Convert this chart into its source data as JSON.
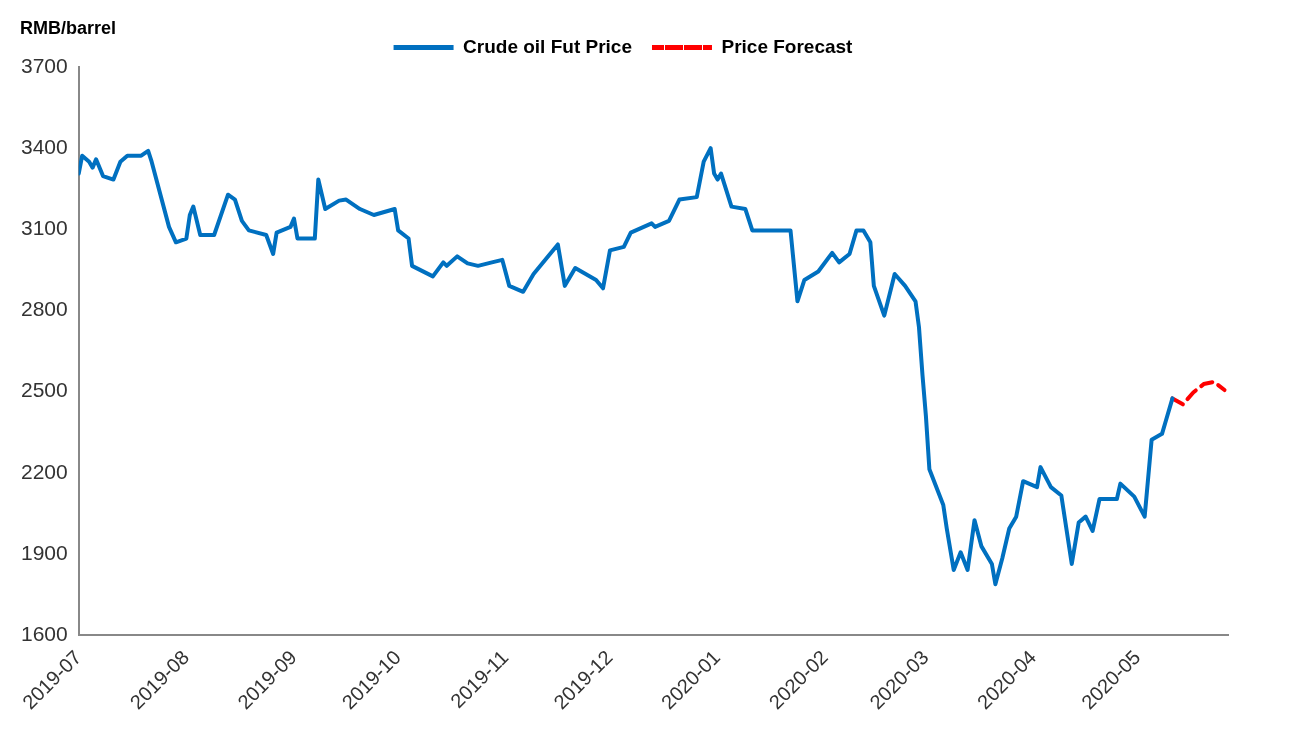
{
  "chart_data": {
    "type": "line",
    "ylabel": "RMB/barrel",
    "legend": "top",
    "grid": false,
    "marker": "none",
    "xlim": [
      "2019-07-01",
      "2020-05-27"
    ],
    "xticks": [
      {
        "value": "2019-07-01",
        "label": "2019-07"
      },
      {
        "value": "2019-08-01",
        "label": "2019-08"
      },
      {
        "value": "2019-09-01",
        "label": "2019-09"
      },
      {
        "value": "2019-10-01",
        "label": "2019-10"
      },
      {
        "value": "2019-11-01",
        "label": "2019-11"
      },
      {
        "value": "2019-12-01",
        "label": "2019-12"
      },
      {
        "value": "2020-01-01",
        "label": "2020-01"
      },
      {
        "value": "2020-02-01",
        "label": "2020-02"
      },
      {
        "value": "2020-03-01",
        "label": "2020-03"
      },
      {
        "value": "2020-04-01",
        "label": "2020-04"
      },
      {
        "value": "2020-05-01",
        "label": "2020-05"
      }
    ],
    "ylim": [
      1600,
      3700
    ],
    "yticks": [
      1600,
      1900,
      2200,
      2500,
      2800,
      3100,
      3400,
      3700
    ],
    "series": [
      {
        "name": "Crude oil Fut Price",
        "color": "#0070c0",
        "line_style": "solid",
        "x": [
          "2019-07-01",
          "2019-07-02",
          "2019-07-04",
          "2019-07-05",
          "2019-07-06",
          "2019-07-08",
          "2019-07-11",
          "2019-07-13",
          "2019-07-15",
          "2019-07-19",
          "2019-07-21",
          "2019-07-22",
          "2019-07-27",
          "2019-07-29",
          "2019-08-01",
          "2019-08-02",
          "2019-08-03",
          "2019-08-05",
          "2019-08-09",
          "2019-08-13",
          "2019-08-15",
          "2019-08-17",
          "2019-08-19",
          "2019-08-24",
          "2019-08-26",
          "2019-08-27",
          "2019-08-31",
          "2019-09-01",
          "2019-09-02",
          "2019-09-07",
          "2019-09-08",
          "2019-09-10",
          "2019-09-14",
          "2019-09-16",
          "2019-09-20",
          "2019-09-24",
          "2019-09-30",
          "2019-10-01",
          "2019-10-04",
          "2019-10-05",
          "2019-10-11",
          "2019-10-14",
          "2019-10-15",
          "2019-10-18",
          "2019-10-21",
          "2019-10-24",
          "2019-10-28",
          "2019-10-31",
          "2019-11-02",
          "2019-11-06",
          "2019-11-09",
          "2019-11-16",
          "2019-11-18",
          "2019-11-21",
          "2019-11-27",
          "2019-11-29",
          "2019-12-01",
          "2019-12-05",
          "2019-12-07",
          "2019-12-13",
          "2019-12-14",
          "2019-12-18",
          "2019-12-21",
          "2019-12-26",
          "2019-12-28",
          "2019-12-30",
          "2019-12-31",
          "2020-01-01",
          "2020-01-02",
          "2020-01-05",
          "2020-01-09",
          "2020-01-11",
          "2020-01-22",
          "2020-01-24",
          "2020-01-26",
          "2020-01-30",
          "2020-02-03",
          "2020-02-05",
          "2020-02-08",
          "2020-02-10",
          "2020-02-12",
          "2020-02-14",
          "2020-02-15",
          "2020-02-18",
          "2020-02-21",
          "2020-02-24",
          "2020-02-27",
          "2020-02-28",
          "2020-02-29",
          "2020-03-01",
          "2020-03-02",
          "2020-03-06",
          "2020-03-07",
          "2020-03-09",
          "2020-03-11",
          "2020-03-13",
          "2020-03-15",
          "2020-03-17",
          "2020-03-20",
          "2020-03-21",
          "2020-03-23",
          "2020-03-25",
          "2020-03-27",
          "2020-03-29",
          "2020-04-02",
          "2020-04-03",
          "2020-04-06",
          "2020-04-09",
          "2020-04-12",
          "2020-04-14",
          "2020-04-16",
          "2020-04-18",
          "2020-04-20",
          "2020-04-25",
          "2020-04-26",
          "2020-04-30",
          "2020-05-03",
          "2020-05-05",
          "2020-05-08",
          "2020-05-09",
          "2020-05-11"
        ],
        "values": [
          3306,
          3372,
          3350,
          3328,
          3359,
          3297,
          3284,
          3350,
          3372,
          3372,
          3390,
          3350,
          3109,
          3052,
          3066,
          3153,
          3184,
          3079,
          3079,
          3228,
          3210,
          3131,
          3096,
          3079,
          3009,
          3088,
          3109,
          3140,
          3066,
          3066,
          3284,
          3175,
          3206,
          3210,
          3175,
          3153,
          3175,
          3096,
          3066,
          2965,
          2926,
          2978,
          2965,
          3000,
          2974,
          2965,
          2978,
          2987,
          2891,
          2869,
          2935,
          3044,
          2891,
          2957,
          2913,
          2882,
          3022,
          3035,
          3088,
          3122,
          3109,
          3131,
          3210,
          3219,
          3350,
          3400,
          3306,
          3284,
          3306,
          3184,
          3175,
          3096,
          3096,
          2834,
          2913,
          2944,
          3013,
          2978,
          3009,
          3096,
          3096,
          3052,
          2891,
          2781,
          2935,
          2891,
          2834,
          2738,
          2563,
          2409,
          2213,
          2081,
          1994,
          1841,
          1906,
          1841,
          2025,
          1928,
          1863,
          1788,
          1884,
          1994,
          2038,
          2169,
          2147,
          2221,
          2147,
          2116,
          1863,
          2016,
          2038,
          1985,
          2103,
          2103,
          2160,
          2112,
          2038,
          2322,
          2344,
          2388,
          2475
        ]
      },
      {
        "name": "Price Forecast",
        "color": "#ff0000",
        "line_style": "dashed",
        "x": [
          "2020-05-11",
          "2020-05-14",
          "2020-05-17",
          "2020-05-20",
          "2020-05-23",
          "2020-05-26"
        ],
        "values": [
          2475,
          2453,
          2497,
          2528,
          2536,
          2506
        ]
      }
    ]
  }
}
